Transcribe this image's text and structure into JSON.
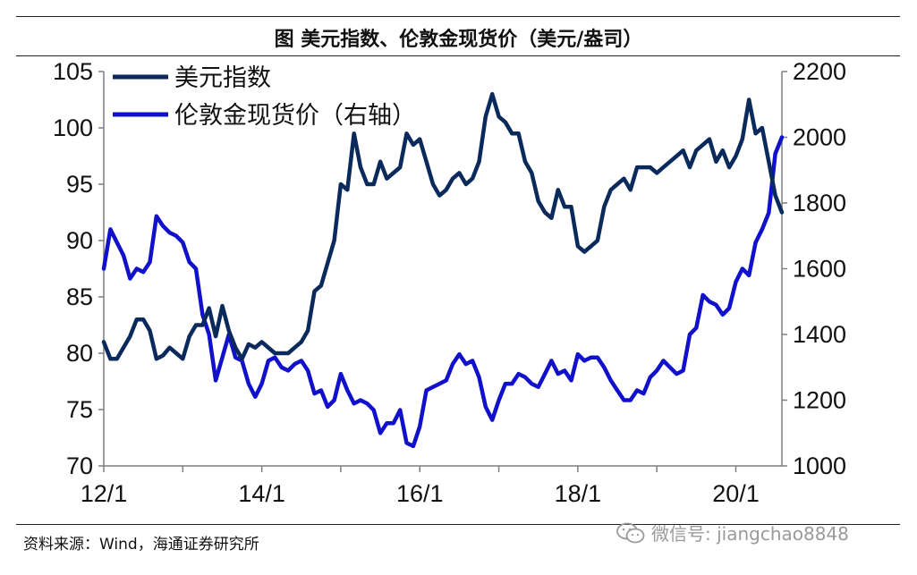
{
  "figure": {
    "title": "图 美元指数、伦敦金现货价（美元/盎司）",
    "source": "资料来源：Wind，海通证券研究所",
    "watermark": "微信号: jiangchao8848"
  },
  "chart_data": {
    "type": "line",
    "x_ticks": [
      "12/1",
      "14/1",
      "16/1",
      "18/1",
      "20/1"
    ],
    "x_range": [
      "2012-01",
      "2020-08"
    ],
    "legend_position": "top-left",
    "grid": false,
    "y_left": {
      "ticks": [
        70,
        75,
        80,
        85,
        90,
        95,
        100,
        105
      ],
      "range": [
        70,
        105
      ]
    },
    "y_right": {
      "ticks": [
        1000,
        1200,
        1400,
        1600,
        1800,
        2000,
        2200
      ],
      "range": [
        1000,
        2200
      ]
    },
    "series": [
      {
        "name": "美元指数",
        "axis": "left",
        "color": "#0b2a5c",
        "x": [
          "2012-01",
          "2012-02",
          "2012-03",
          "2012-05",
          "2012-06",
          "2012-07",
          "2012-08",
          "2012-09",
          "2012-10",
          "2012-11",
          "2012-12",
          "2013-01",
          "2013-02",
          "2013-03",
          "2013-04",
          "2013-05",
          "2013-06",
          "2013-07",
          "2013-08",
          "2013-09",
          "2013-10",
          "2013-11",
          "2013-12",
          "2014-01",
          "2014-03",
          "2014-05",
          "2014-06",
          "2014-07",
          "2014-08",
          "2014-09",
          "2014-10",
          "2014-11",
          "2014-12",
          "2015-01",
          "2015-02",
          "2015-03",
          "2015-04",
          "2015-05",
          "2015-06",
          "2015-07",
          "2015-08",
          "2015-09",
          "2015-10",
          "2015-11",
          "2015-12",
          "2016-01",
          "2016-02",
          "2016-03",
          "2016-04",
          "2016-05",
          "2016-06",
          "2016-07",
          "2016-08",
          "2016-09",
          "2016-10",
          "2016-11",
          "2016-12",
          "2017-01",
          "2017-02",
          "2017-03",
          "2017-04",
          "2017-05",
          "2017-06",
          "2017-07",
          "2017-08",
          "2017-09",
          "2017-10",
          "2017-11",
          "2017-12",
          "2018-01",
          "2018-02",
          "2018-03",
          "2018-04",
          "2018-05",
          "2018-06",
          "2018-07",
          "2018-08",
          "2018-09",
          "2018-10",
          "2018-11",
          "2018-12",
          "2019-01",
          "2019-02",
          "2019-03",
          "2019-04",
          "2019-05",
          "2019-06",
          "2019-07",
          "2019-08",
          "2019-09",
          "2019-10",
          "2019-11",
          "2019-12",
          "2020-01",
          "2020-02",
          "2020-03",
          "2020-04",
          "2020-05",
          "2020-06",
          "2020-07",
          "2020-08"
        ],
        "values": [
          81,
          79.5,
          79.5,
          81.5,
          83,
          83,
          82,
          79.5,
          79.8,
          80.5,
          80,
          79.5,
          81.5,
          82.5,
          82.5,
          84,
          81.5,
          84.2,
          82,
          80.5,
          79.5,
          80.8,
          80.5,
          81,
          80,
          80,
          80.5,
          81,
          82,
          85.5,
          86,
          88,
          90,
          95,
          94.5,
          99.5,
          96.5,
          95,
          95,
          97,
          95.5,
          96,
          96.5,
          99.5,
          98.5,
          99,
          97,
          95,
          94,
          94.5,
          95.5,
          96,
          95,
          95.5,
          97,
          101,
          103,
          101,
          100.5,
          99.5,
          99.5,
          97,
          96,
          93.5,
          92.5,
          92,
          94.5,
          93,
          93,
          89.5,
          89,
          89.5,
          90,
          93,
          94.5,
          95,
          95.5,
          94.5,
          96.5,
          96.5,
          96.5,
          96,
          96.5,
          97,
          97.5,
          98,
          96.5,
          98,
          98.5,
          99,
          97,
          98,
          96.5,
          97.5,
          99,
          102.5,
          99.5,
          100,
          97,
          94,
          92.5
        ]
      },
      {
        "name": "伦敦金现货价（右轴）",
        "axis": "right",
        "color": "#1111cc",
        "x": [
          "2012-01",
          "2012-02",
          "2012-03",
          "2012-04",
          "2012-05",
          "2012-06",
          "2012-07",
          "2012-08",
          "2012-09",
          "2012-10",
          "2012-11",
          "2012-12",
          "2013-01",
          "2013-02",
          "2013-03",
          "2013-04",
          "2013-05",
          "2013-06",
          "2013-07",
          "2013-08",
          "2013-09",
          "2013-10",
          "2013-11",
          "2013-12",
          "2014-01",
          "2014-02",
          "2014-03",
          "2014-04",
          "2014-05",
          "2014-06",
          "2014-07",
          "2014-08",
          "2014-09",
          "2014-10",
          "2014-11",
          "2014-12",
          "2015-01",
          "2015-02",
          "2015-03",
          "2015-04",
          "2015-05",
          "2015-06",
          "2015-07",
          "2015-08",
          "2015-09",
          "2015-10",
          "2015-11",
          "2015-12",
          "2016-01",
          "2016-02",
          "2016-03",
          "2016-04",
          "2016-05",
          "2016-06",
          "2016-07",
          "2016-08",
          "2016-09",
          "2016-10",
          "2016-11",
          "2016-12",
          "2017-01",
          "2017-02",
          "2017-03",
          "2017-04",
          "2017-05",
          "2017-06",
          "2017-07",
          "2017-08",
          "2017-09",
          "2017-10",
          "2017-11",
          "2017-12",
          "2018-01",
          "2018-02",
          "2018-03",
          "2018-04",
          "2018-05",
          "2018-06",
          "2018-07",
          "2018-08",
          "2018-09",
          "2018-10",
          "2018-11",
          "2018-12",
          "2019-01",
          "2019-02",
          "2019-03",
          "2019-04",
          "2019-05",
          "2019-06",
          "2019-07",
          "2019-08",
          "2019-09",
          "2019-10",
          "2019-11",
          "2019-12",
          "2020-01",
          "2020-02",
          "2020-03",
          "2020-04",
          "2020-05",
          "2020-06",
          "2020-07",
          "2020-08"
        ],
        "values": [
          1600,
          1720,
          1680,
          1640,
          1570,
          1600,
          1590,
          1620,
          1760,
          1730,
          1710,
          1700,
          1680,
          1620,
          1600,
          1460,
          1400,
          1260,
          1330,
          1400,
          1330,
          1320,
          1250,
          1210,
          1250,
          1320,
          1330,
          1300,
          1290,
          1310,
          1320,
          1290,
          1220,
          1230,
          1180,
          1200,
          1280,
          1230,
          1190,
          1200,
          1190,
          1170,
          1100,
          1130,
          1130,
          1170,
          1070,
          1060,
          1120,
          1230,
          1240,
          1250,
          1260,
          1310,
          1340,
          1310,
          1320,
          1270,
          1180,
          1140,
          1200,
          1250,
          1250,
          1280,
          1270,
          1250,
          1240,
          1280,
          1320,
          1280,
          1290,
          1260,
          1340,
          1320,
          1330,
          1330,
          1300,
          1260,
          1230,
          1200,
          1200,
          1230,
          1220,
          1270,
          1290,
          1320,
          1300,
          1280,
          1290,
          1400,
          1420,
          1520,
          1500,
          1490,
          1460,
          1480,
          1560,
          1600,
          1580,
          1680,
          1720,
          1770,
          1950,
          2000
        ]
      }
    ]
  }
}
